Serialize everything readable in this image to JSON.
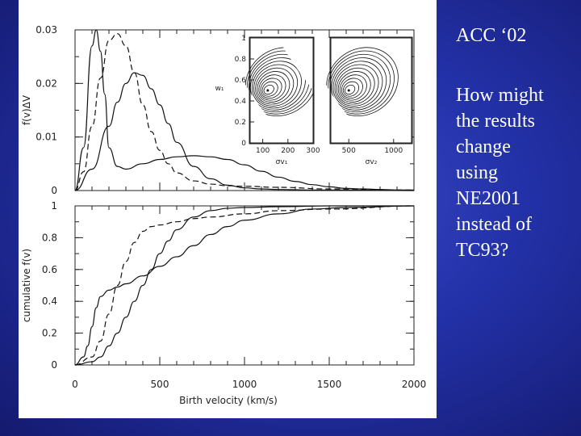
{
  "slide": {
    "heading": "ACC ‘02",
    "question_lines": [
      "How might",
      "the results",
      "change",
      "using",
      "NE2001",
      "instead of",
      "TC93?"
    ],
    "background_color": "#2331a8",
    "text_color": "#ffffff"
  },
  "chart_data": [
    {
      "type": "line",
      "panel": "top",
      "ylabel": "f(v)ΔV",
      "xlim": [
        0,
        2000
      ],
      "ylim": [
        0,
        0.03
      ],
      "y_ticks": [
        "0",
        "0.01",
        "0.02",
        "0.03"
      ],
      "series": [
        {
          "style": "solid",
          "x": [
            0,
            50,
            100,
            125,
            150,
            175,
            200,
            250,
            300,
            400,
            500,
            600,
            700,
            800,
            900,
            1000,
            1100,
            1200,
            1300,
            1400,
            1500,
            1600,
            1700,
            1800,
            1900,
            2000
          ],
          "y": [
            0,
            0.008,
            0.027,
            0.03,
            0.026,
            0.018,
            0.008,
            0.0045,
            0.004,
            0.005,
            0.0058,
            0.0063,
            0.0065,
            0.0063,
            0.0058,
            0.0048,
            0.0036,
            0.0025,
            0.0017,
            0.0011,
            0.0007,
            0.0004,
            0.0003,
            0.0002,
            0.0001,
            0.0001
          ]
        },
        {
          "style": "dashed",
          "x": [
            0,
            50,
            100,
            150,
            200,
            250,
            300,
            350,
            400,
            450,
            500,
            550,
            600,
            700,
            800,
            900,
            1000,
            1200,
            1500,
            2000
          ],
          "y": [
            0,
            0.0035,
            0.012,
            0.021,
            0.028,
            0.0293,
            0.027,
            0.022,
            0.016,
            0.011,
            0.0075,
            0.005,
            0.0033,
            0.0018,
            0.0012,
            0.0009,
            0.0008,
            0.0006,
            0.0003,
            0.0001
          ]
        },
        {
          "style": "solid",
          "x": [
            0,
            100,
            200,
            250,
            300,
            350,
            400,
            450,
            500,
            550,
            600,
            700,
            800,
            900,
            1000,
            1100,
            1200,
            1400,
            1600,
            2000
          ],
          "y": [
            0,
            0.004,
            0.012,
            0.0165,
            0.02,
            0.022,
            0.0215,
            0.019,
            0.016,
            0.0125,
            0.009,
            0.0045,
            0.0022,
            0.001,
            0.0005,
            0.0003,
            0.0002,
            0.0001,
            0.0001,
            0
          ]
        }
      ]
    },
    {
      "type": "line",
      "panel": "bottom",
      "xlabel": "Birth velocity (km/s)",
      "ylabel": "cumulative f(v)",
      "xlim": [
        0,
        2000
      ],
      "ylim": [
        0,
        1
      ],
      "x_ticks": [
        "0",
        "500",
        "1000",
        "1500",
        "2000"
      ],
      "y_ticks": [
        "0",
        "0.2",
        "0.4",
        "0.6",
        "0.8",
        "1"
      ],
      "series": [
        {
          "style": "solid",
          "x": [
            0,
            50,
            75,
            100,
            125,
            150,
            200,
            250,
            300,
            400,
            500,
            600,
            700,
            800,
            900,
            1000,
            1200,
            1400,
            1600,
            2000
          ],
          "y": [
            0,
            0.05,
            0.12,
            0.24,
            0.36,
            0.43,
            0.47,
            0.49,
            0.51,
            0.56,
            0.62,
            0.68,
            0.75,
            0.82,
            0.87,
            0.91,
            0.95,
            0.98,
            0.99,
            1.0
          ]
        },
        {
          "style": "dashed",
          "x": [
            0,
            100,
            150,
            200,
            250,
            300,
            350,
            400,
            450,
            500,
            600,
            700,
            800,
            1000,
            1200,
            1500,
            2000
          ],
          "y": [
            0,
            0.05,
            0.15,
            0.32,
            0.5,
            0.65,
            0.77,
            0.84,
            0.87,
            0.88,
            0.9,
            0.92,
            0.93,
            0.95,
            0.97,
            0.98,
            1.0
          ]
        },
        {
          "style": "solid",
          "x": [
            0,
            100,
            150,
            200,
            250,
            300,
            350,
            400,
            450,
            500,
            550,
            600,
            700,
            800,
            900,
            1000,
            1200,
            1500,
            2000
          ],
          "y": [
            0,
            0.02,
            0.05,
            0.12,
            0.2,
            0.3,
            0.4,
            0.5,
            0.6,
            0.7,
            0.78,
            0.85,
            0.93,
            0.97,
            0.985,
            0.99,
            0.995,
            1.0,
            1.0
          ]
        }
      ]
    },
    {
      "type": "contour",
      "panel": "inset-left",
      "ylabel": "w₁",
      "xlabel": "σv₁",
      "xlim": [
        50,
        300
      ],
      "ylim": [
        0,
        1
      ],
      "x_ticks": [
        "100",
        "200",
        "300"
      ],
      "y_ticks": [
        "0",
        "0.2",
        "0.4",
        "0.6",
        "0.8",
        "1"
      ],
      "peak": {
        "x": 120,
        "y": 0.5
      }
    },
    {
      "type": "contour",
      "panel": "inset-right",
      "xlabel": "σv₂",
      "xlim": [
        300,
        1200
      ],
      "x_ticks": [
        "500",
        "1000"
      ],
      "peak": {
        "x": 500,
        "y": 0.5
      }
    }
  ]
}
